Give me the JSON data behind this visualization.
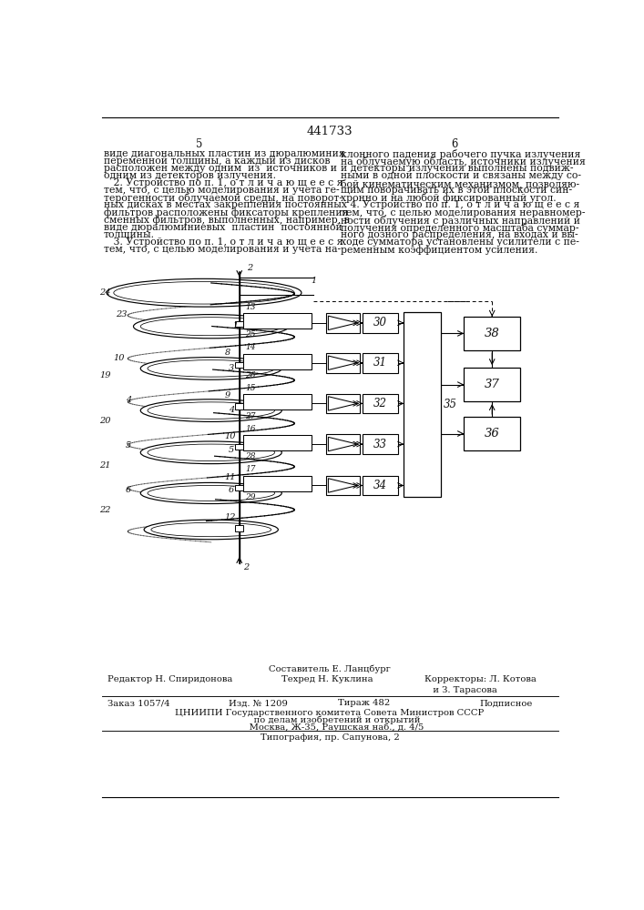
{
  "title_number": "441733",
  "page_left": "5",
  "page_right": "6",
  "text_col1_lines": [
    "виде диагональных пластин из дюралюминия",
    "переменной толщины, а каждый из дисков",
    "расположен между одним  из  источников и",
    "одним из детекторов излучения.",
    "   2. Устройство по п. 1, о т л и ч а ю щ е е с я",
    "тем, что, с целью моделирования и учета ге-",
    "терогенности облучаемой среды, на поворот-",
    "ных дисках в местах закрепления постоянных",
    "фильтров расположены фиксаторы крепления",
    "сменных фильтров, выполненных, например, в",
    "виде дюралюминиевых  пластин  постоянной",
    "толщины.",
    "   3. Устройство по п. 1, о т л и ч а ю щ е е с я",
    "тем, что, с целью моделирования и учета на-"
  ],
  "text_col2_lines": [
    "клонного падения рабочего пучка излучения",
    "на облучаемую область, источники излучения",
    "и детекторы излучения выполнены подвиж-",
    "ными в одной плоскости и связаны между со-",
    "бой кинематическим механизмом, позволяю-",
    "щим поворачивать их в этой плоскости син-",
    "хронно и на любой фиксированный угол.",
    "   4. Устройство по п. 1, о т л и ч а ю щ е е с я",
    "тем, что, с целью моделирования неравномер-",
    "ности облучения с различных направлений и",
    "получения определенного масштаба суммар-",
    "ного дозного распределения, на входах и вы-",
    "ходе сумматора установлены усилители с пе-",
    "ременным коэффициентом усиления."
  ],
  "footer_composer": "Составитель Е. Ланцбург",
  "footer_editor": "Редактор Н. Спиридонова",
  "footer_tech": "Техред Н. Куклина",
  "footer_correctors_1": "Корректоры: Л. Котова",
  "footer_correctors_2": "   и З. Тарасова",
  "footer_order": "Заказ 1057/4",
  "footer_pub": "Изд. № 1209",
  "footer_copies": "Тираж 482",
  "footer_signed": "Подписное",
  "footer_org1": "ЦНИИПИ Государственного комитета Совета Министров СССР",
  "footer_org2": "     по делам изобретений и открытий",
  "footer_org3": "     Москва, Ж-35, Раушская наб., д. 4/5",
  "footer_print": "Типография, пр. Сапунова, 2",
  "bg_color": "#ffffff",
  "text_color": "#111111",
  "font_size_body": 7.8,
  "font_size_title": 9.5,
  "font_size_footer": 7.2
}
